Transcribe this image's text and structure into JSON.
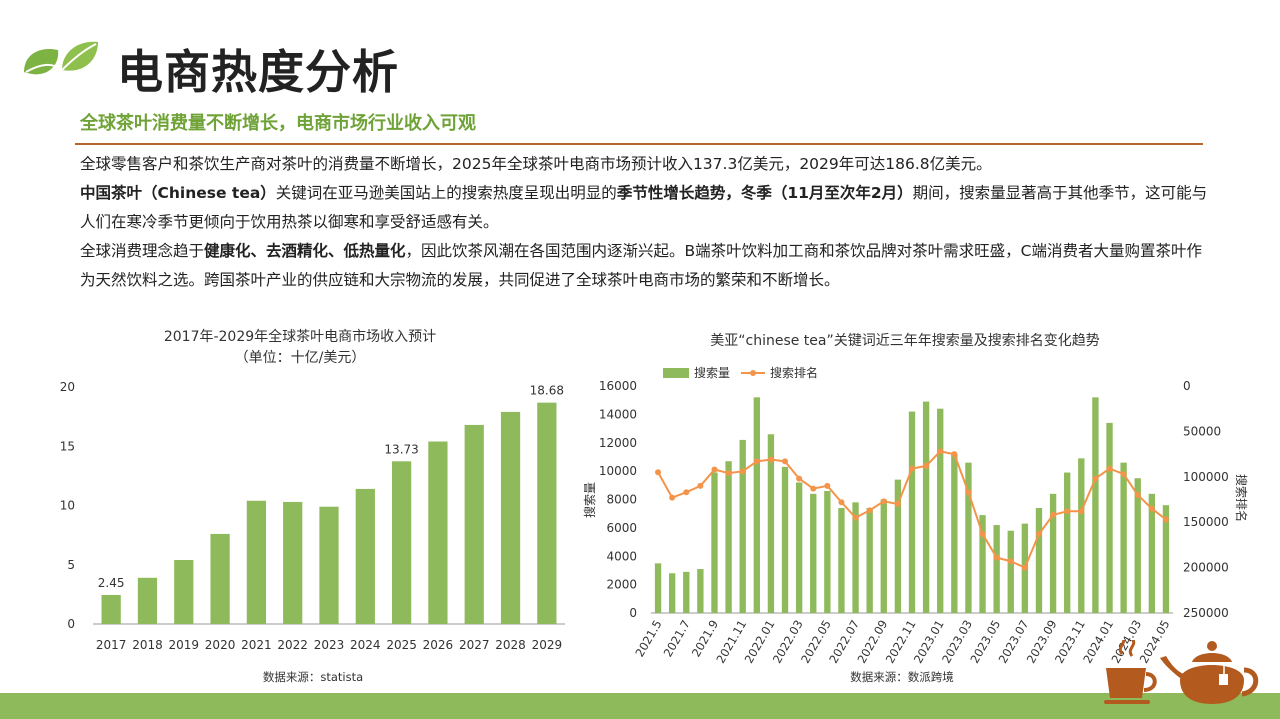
{
  "header": {
    "title": "电商热度分析",
    "subtitle": "全球茶叶消费量不断增长，电商市场行业收入可观"
  },
  "body": {
    "p1": "全球零售客户和茶饮生产商对茶叶的消费量不断增长，2025年全球茶叶电商市场预计收入137.3亿美元，2029年可达186.8亿美元。",
    "p2_bold1": "中国茶叶（Chinese tea）",
    "p2_text1": "关键词在亚马逊美国站上的搜索热度呈现出明显的",
    "p2_bold2": "季节性增长趋势，冬季（11月至次年2月）",
    "p2_text2": "期间，搜索量显著高于其他季节，这可能与人们在寒冷季节更倾向于饮用热茶以御寒和享受舒适感有关。",
    "p3_text1": "全球消费理念趋于",
    "p3_bold1": "健康化、去酒精化、低热量化",
    "p3_text2": "，因此饮茶风潮在各国范围内逐渐兴起。B端茶叶饮料加工商和茶饮品牌对茶叶需求旺盛，C端消费者大量购置茶叶作为天然饮料之选。跨国茶叶产业的供应链和大宗物流的发展，共同促进了全球茶叶电商市场的繁荣和不断增长。"
  },
  "chart_data": [
    {
      "type": "bar",
      "title": "2017年-2029年全球茶叶电商市场收入预计",
      "subtitle": "（单位：十亿/美元）",
      "categories": [
        "2017",
        "2018",
        "2019",
        "2020",
        "2021",
        "2022",
        "2023",
        "2024",
        "2025",
        "2026",
        "2027",
        "2028",
        "2029"
      ],
      "values": [
        2.45,
        3.9,
        5.4,
        7.6,
        10.4,
        10.3,
        9.9,
        11.4,
        13.73,
        15.4,
        16.8,
        17.9,
        18.68
      ],
      "data_labels": {
        "0": "2.45",
        "8": "13.73",
        "12": "18.68"
      },
      "ylim": [
        0,
        20
      ],
      "yticks": [
        "0",
        "5",
        "10",
        "15",
        "20"
      ],
      "source": "数据来源：statista",
      "color": "#8fba5b"
    },
    {
      "type": "bar+line",
      "title": "美亚“chinese tea”关键词近三年年搜索量及搜索排名变化趋势",
      "categories": [
        "2021.5",
        "2021.6",
        "2021.7",
        "2021.8",
        "2021.9",
        "2021.10",
        "2021.11",
        "2021.12",
        "2022.01",
        "2022.02",
        "2022.03",
        "2022.04",
        "2022.05",
        "2022.06",
        "2022.07",
        "2022.08",
        "2022.09",
        "2022.10",
        "2022.11",
        "2022.12",
        "2023.01",
        "2023.02",
        "2023.03",
        "2023.04",
        "2023.05",
        "2023.06",
        "2023.07",
        "2023.08",
        "2023.09",
        "2023.10",
        "2023.11",
        "2023.12",
        "2024.01",
        "2024.02",
        "2024.03",
        "2024.04",
        "2024.05"
      ],
      "tick_labels": [
        "2021.5",
        "2021.7",
        "2021.9",
        "2021.11",
        "2022.01",
        "2022.03",
        "2022.05",
        "2022.07",
        "2022.09",
        "2022.11",
        "2023.01",
        "2023.03",
        "2023.05",
        "2023.07",
        "2023.09",
        "2023.11",
        "2024.01",
        "2024.03",
        "2024.05"
      ],
      "series": [
        {
          "name": "搜索量",
          "kind": "bar",
          "axis": "left",
          "color": "#8fba5b",
          "values": [
            3500,
            2800,
            2900,
            3100,
            9900,
            10700,
            12200,
            15200,
            12600,
            10300,
            9200,
            8400,
            8600,
            7400,
            7800,
            7400,
            8000,
            9400,
            14200,
            14900,
            14400,
            11200,
            10600,
            6900,
            6200,
            5800,
            6300,
            7400,
            8400,
            9900,
            10900,
            15200,
            13400,
            10600,
            9500,
            8400,
            7600
          ]
        },
        {
          "name": "搜索排名",
          "kind": "line",
          "axis": "right",
          "color": "#f3944a",
          "values": [
            95000,
            123000,
            117000,
            110000,
            92000,
            96000,
            94000,
            83000,
            81000,
            83000,
            102000,
            113000,
            110000,
            128000,
            145000,
            137000,
            127000,
            130000,
            91000,
            88000,
            72000,
            75000,
            117000,
            163000,
            189000,
            193000,
            200000,
            163000,
            142000,
            138000,
            138000,
            102000,
            91000,
            97000,
            120000,
            135000,
            147000
          ]
        }
      ],
      "ylabel_left": "搜索量",
      "ylabel_right": "搜索排名",
      "ylim_left": [
        0,
        16000
      ],
      "yticks_left": [
        "0",
        "2000",
        "4000",
        "6000",
        "8000",
        "10000",
        "12000",
        "14000",
        "16000"
      ],
      "ylim_right": [
        0,
        250000
      ],
      "yticks_right": [
        "0",
        "50000",
        "100000",
        "150000",
        "200000",
        "250000"
      ],
      "right_inverted": true,
      "legend_position": "top-left",
      "source": "数据来源：数派跨境"
    }
  ]
}
